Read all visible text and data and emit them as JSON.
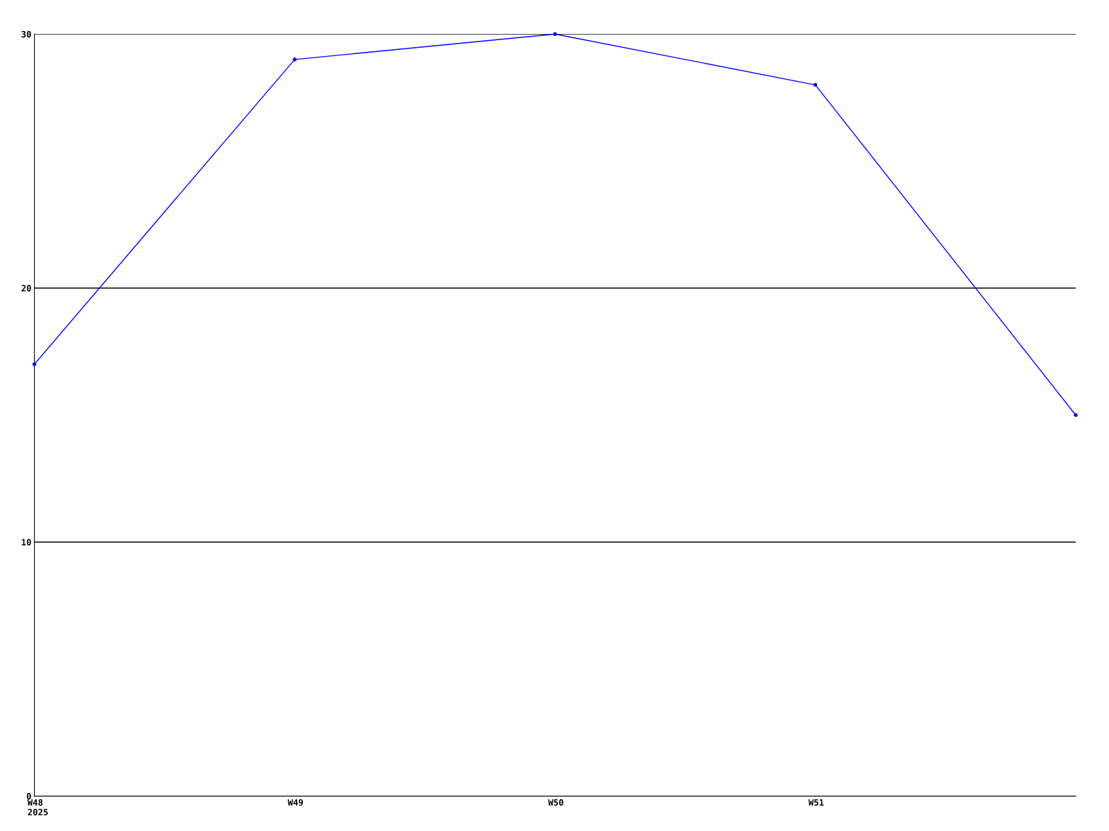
{
  "chart_data": {
    "type": "line",
    "categories": [
      "W48\n2025",
      "W49",
      "W50",
      "W51",
      null
    ],
    "series": [
      {
        "color": "#0000ff",
        "values": [
          17,
          29,
          30,
          28,
          15
        ]
      }
    ],
    "ylim": [
      0,
      30
    ],
    "yticks": [
      0,
      10,
      20,
      30
    ],
    "grid": "y",
    "marker": "circle",
    "line_style": "solid"
  }
}
